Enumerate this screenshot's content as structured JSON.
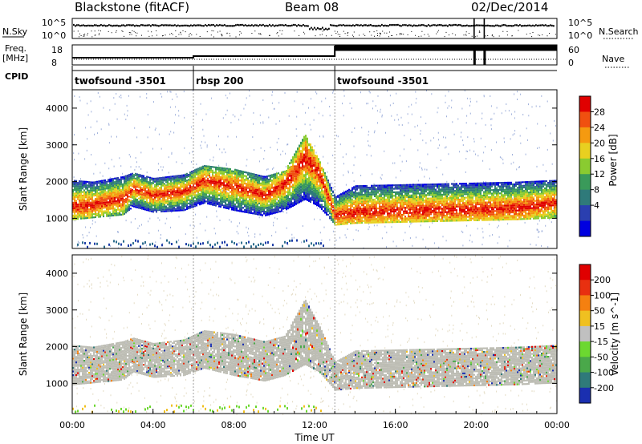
{
  "header": {
    "radar": "Blackstone (fitACF)",
    "beam": "Beam 08",
    "date": "02/Dec/2014"
  },
  "meta_panels": {
    "nsky_label": "N.Sky",
    "nsearch_label": "N.Search",
    "freq_label_line1": "Freq.",
    "freq_label_line2": "[MHz]",
    "nave_label": "Nave",
    "cpid_label": "CPID",
    "noise_left_ticks": [
      "10^5",
      "10^0"
    ],
    "noise_right_ticks": [
      "10^5",
      "10^0"
    ],
    "freq_ticks": [
      "18",
      "8"
    ],
    "nave_ticks": [
      "60",
      "0"
    ],
    "cpid_segments": [
      {
        "label": "twofsound -3501",
        "start_hour": 0,
        "end_hour": 6
      },
      {
        "label": "rbsp 200",
        "start_hour": 6,
        "end_hour": 13
      },
      {
        "label": "twofsound -3501",
        "start_hour": 13,
        "end_hour": 24
      }
    ]
  },
  "chart_data": [
    {
      "type": "heatmap",
      "parameter": "Power",
      "ylabel": "Slant Range [km]",
      "xlabel": "Time UT",
      "xlim_hours": [
        0,
        24
      ],
      "ylim_km": [
        180,
        4500
      ],
      "y_ticks": [
        "1000",
        "2000",
        "3000",
        "4000"
      ],
      "colorbar_label": "Power [dB]",
      "colorbar_ticks": [
        "28",
        "24",
        "20",
        "16",
        "12",
        "8",
        "4"
      ],
      "colorbar_colors": [
        "#0000e0",
        "#2a3fb0",
        "#2f7a7a",
        "#3a9a5a",
        "#8acb30",
        "#e8d020",
        "#f59a10",
        "#f05010",
        "#e00000"
      ],
      "bands": [
        {
          "hour": 0.0,
          "lower_km": 950,
          "peak_km": 1300,
          "upper_km": 2050
        },
        {
          "hour": 1.0,
          "lower_km": 1000,
          "peak_km": 1350,
          "upper_km": 2000
        },
        {
          "hour": 2.5,
          "lower_km": 1080,
          "peak_km": 1500,
          "upper_km": 2150
        },
        {
          "hour": 3.0,
          "lower_km": 1300,
          "peak_km": 1800,
          "upper_km": 2250
        },
        {
          "hour": 4.0,
          "lower_km": 1150,
          "peak_km": 1600,
          "upper_km": 2100
        },
        {
          "hour": 5.5,
          "lower_km": 1200,
          "peak_km": 1700,
          "upper_km": 2200
        },
        {
          "hour": 6.5,
          "lower_km": 1400,
          "peak_km": 2000,
          "upper_km": 2450
        },
        {
          "hour": 8.0,
          "lower_km": 1200,
          "peak_km": 1850,
          "upper_km": 2350
        },
        {
          "hour": 9.5,
          "lower_km": 1050,
          "peak_km": 1600,
          "upper_km": 2150
        },
        {
          "hour": 10.5,
          "lower_km": 1200,
          "peak_km": 1900,
          "upper_km": 2300
        },
        {
          "hour": 11.5,
          "lower_km": 1500,
          "peak_km": 2600,
          "upper_km": 3300
        },
        {
          "hour": 12.2,
          "lower_km": 1300,
          "peak_km": 2200,
          "upper_km": 2600
        },
        {
          "hour": 13.0,
          "lower_km": 800,
          "peak_km": 1050,
          "upper_km": 1600
        },
        {
          "hour": 14.0,
          "lower_km": 850,
          "peak_km": 1150,
          "upper_km": 1900
        },
        {
          "hour": 18.0,
          "lower_km": 900,
          "peak_km": 1200,
          "upper_km": 1950
        },
        {
          "hour": 22.0,
          "lower_km": 950,
          "peak_km": 1250,
          "upper_km": 2000
        },
        {
          "hour": 24.0,
          "lower_km": 1000,
          "peak_km": 1400,
          "upper_km": 2050
        }
      ]
    },
    {
      "type": "heatmap",
      "parameter": "Velocity",
      "ylabel": "Slant Range [km]",
      "xlabel": "Time UT",
      "xlim_hours": [
        0,
        24
      ],
      "ylim_km": [
        180,
        4500
      ],
      "y_ticks": [
        "1000",
        "2000",
        "3000",
        "4000"
      ],
      "colorbar_label": "Velocity [m s^-1]",
      "colorbar_ticks": [
        "200",
        "100",
        "50",
        "15",
        "-15",
        "-50",
        "-100",
        "-200"
      ],
      "colorbar_colors": [
        "#1a2fb0",
        "#2f7a7a",
        "#4aa84a",
        "#6cd830",
        "#c0c0c0",
        "#f0c020",
        "#f58010",
        "#e83010",
        "#e00000"
      ]
    }
  ],
  "x_axis": {
    "ticks": [
      "00:00",
      "04:00",
      "08:00",
      "12:00",
      "16:00",
      "20:00",
      "00:00"
    ],
    "label": "Time UT"
  },
  "colors": {
    "frame": "#000000",
    "ground_scatter": "#bdbdb4",
    "cpid_divider": "#888888"
  }
}
